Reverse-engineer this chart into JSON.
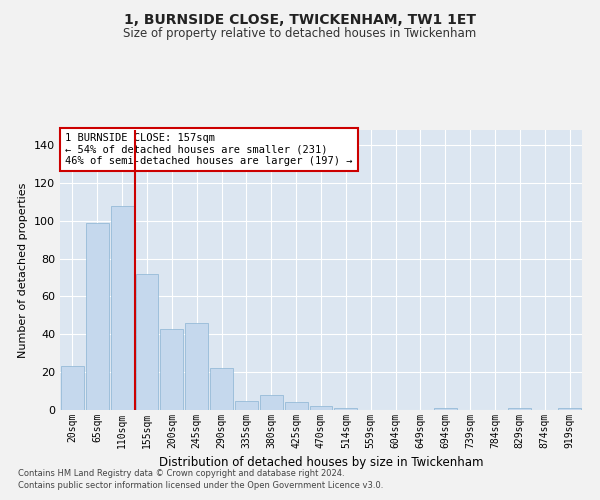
{
  "title1": "1, BURNSIDE CLOSE, TWICKENHAM, TW1 1ET",
  "title2": "Size of property relative to detached houses in Twickenham",
  "xlabel": "Distribution of detached houses by size in Twickenham",
  "ylabel": "Number of detached properties",
  "categories": [
    "20sqm",
    "65sqm",
    "110sqm",
    "155sqm",
    "200sqm",
    "245sqm",
    "290sqm",
    "335sqm",
    "380sqm",
    "425sqm",
    "470sqm",
    "514sqm",
    "559sqm",
    "604sqm",
    "649sqm",
    "694sqm",
    "739sqm",
    "784sqm",
    "829sqm",
    "874sqm",
    "919sqm"
  ],
  "values": [
    23,
    99,
    108,
    72,
    43,
    46,
    22,
    5,
    8,
    4,
    2,
    1,
    0,
    0,
    0,
    1,
    0,
    0,
    1,
    0,
    1
  ],
  "bar_color": "#c5d8ed",
  "bar_edgecolor": "#8ab4d4",
  "bg_color": "#dce6f1",
  "grid_color": "#ffffff",
  "vline_color": "#cc0000",
  "vline_x_idx": 2.5,
  "annotation_text": "1 BURNSIDE CLOSE: 157sqm\n← 54% of detached houses are smaller (231)\n46% of semi-detached houses are larger (197) →",
  "annotation_box_facecolor": "#ffffff",
  "annotation_box_edgecolor": "#cc0000",
  "ylim": [
    0,
    148
  ],
  "yticks": [
    0,
    20,
    40,
    60,
    80,
    100,
    120,
    140
  ],
  "footer1": "Contains HM Land Registry data © Crown copyright and database right 2024.",
  "footer2": "Contains public sector information licensed under the Open Government Licence v3.0.",
  "fig_facecolor": "#f2f2f2"
}
